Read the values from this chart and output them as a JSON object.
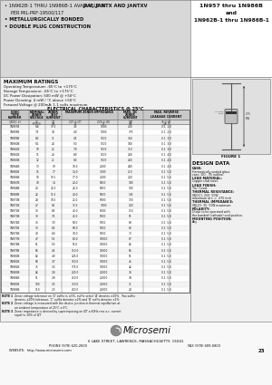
{
  "title_left_line1a": "• 1N962B-1 THRU 1N986B-1 AVAILABLE IN ",
  "title_left_line1b": "JAN, JANTX AND JANTXV",
  "title_left_line2": "  PER MIL-PRF-19500/117",
  "title_left_line3": "• METALLURGICALLY BONDED",
  "title_left_line4": "• DOUBLE PLUG CONSTRUCTION",
  "title_right1": "1N957 thru 1N986B",
  "title_right2": "and",
  "title_right3": "1N962B-1 thru 1N986B-1",
  "max_ratings_title": "MAXIMUM RATINGS",
  "max_ratings": [
    "Operating Temperature: -65°C to +175°C",
    "Storage Temperature: -65°C to +175°C",
    "DC Power Dissipation: 500 mW @ +50°C",
    "Power Derating: 4 mW / °C above +50°C",
    "Forward Voltage @ 200mA: 1.1 volts maximum"
  ],
  "elec_char_title": "ELECTRICAL CHARACTERISTICS @ 25°C",
  "table_data": [
    [
      "1N957B",
      "6.8",
      "37.5",
      "3.5",
      "1000",
      "0.25",
      "400",
      "0.1",
      "1.0"
    ],
    [
      "1N958B",
      "7.5",
      "34",
      "4.0",
      "1000",
      "0.25",
      "375",
      "0.1",
      "2.0"
    ],
    [
      "1N959B",
      "8.2",
      "31",
      "4.5",
      "1500",
      "0.25",
      "360",
      "0.1",
      "3.0"
    ],
    [
      "1N960B",
      "9.1",
      "28",
      "5.0",
      "1500",
      "0.25",
      "340",
      "0.1",
      "3.0"
    ],
    [
      "1N961B",
      "10",
      "25",
      "7.0",
      "1500",
      "0.25",
      "310",
      "0.1",
      "3.0"
    ],
    [
      "1N962B",
      "11",
      "23",
      "8.0",
      "1500",
      "0.25",
      "280",
      "0.1",
      "4.0"
    ],
    [
      "1N963B",
      "12",
      "21",
      "9.0",
      "1500",
      "0.25",
      "260",
      "0.1",
      "4.0"
    ],
    [
      "1N964B",
      "13",
      "19",
      "10.0",
      "2000",
      "0.25",
      "240",
      "0.1",
      "4.0"
    ],
    [
      "1N965B",
      "15",
      "17",
      "14.0",
      "3000",
      "0.25",
      "210",
      "0.1",
      "5.0"
    ],
    [
      "1N966B",
      "16",
      "15.5",
      "17.0",
      "4000",
      "0.5",
      "200",
      "0.1",
      "5.0"
    ],
    [
      "1N967B",
      "18",
      "14",
      "20.0",
      "5000",
      "0.5",
      "180",
      "0.1",
      "5.0"
    ],
    [
      "1N968B",
      "20",
      "12.5",
      "22.0",
      "5000",
      "0.5",
      "160",
      "0.1",
      "5.0"
    ],
    [
      "1N969B",
      "22",
      "11.5",
      "23.0",
      "5000",
      "0.5",
      "145",
      "0.1",
      "5.0"
    ],
    [
      "1N970B",
      "24",
      "10.5",
      "25.0",
      "6000",
      "0.5",
      "130",
      "0.1",
      "5.0"
    ],
    [
      "1N971B",
      "27",
      "9.5",
      "35.0",
      "7000",
      "0.5",
      "120",
      "0.1",
      "5.0"
    ],
    [
      "1N972B",
      "30",
      "8.5",
      "40.0",
      "8000",
      "0.5",
      "110",
      "0.1",
      "5.0"
    ],
    [
      "1N973B",
      "33",
      "7.5",
      "45.0",
      "9000",
      "0.5",
      "95",
      "0.1",
      "5.0"
    ],
    [
      "1N974B",
      "36",
      "7.0",
      "50.0",
      "9000",
      "0.5",
      "88",
      "0.1",
      "5.0"
    ],
    [
      "1N975B",
      "39",
      "6.5",
      "60.0",
      "9000",
      "0.5",
      "80",
      "0.1",
      "5.0"
    ],
    [
      "1N976B",
      "43",
      "6.0",
      "70.0",
      "9000",
      "0.5",
      "73",
      "0.1",
      "5.0"
    ],
    [
      "1N977B",
      "47",
      "5.5",
      "80.0",
      "10000",
      "0.5",
      "67",
      "0.1",
      "5.0"
    ],
    [
      "1N978B",
      "51",
      "5.0",
      "95.0",
      "10000",
      "0.5",
      "62",
      "0.1",
      "5.0"
    ],
    [
      "1N979B",
      "56",
      "4.5",
      "110.0",
      "10000",
      "0.5",
      "56",
      "0.1",
      "5.0"
    ],
    [
      "1N980B",
      "62",
      "4.0",
      "125.0",
      "10000",
      "1.0",
      "51",
      "0.1",
      "5.0"
    ],
    [
      "1N981B",
      "68",
      "3.7",
      "150.0",
      "10000",
      "1.0",
      "46",
      "0.1",
      "5.0"
    ],
    [
      "1N982B",
      "75",
      "3.3",
      "175.0",
      "10000",
      "1.0",
      "42",
      "0.1",
      "5.0"
    ],
    [
      "1N983B",
      "82",
      "3.0",
      "200.0",
      "20000",
      "1.0",
      "38",
      "0.1",
      "5.0"
    ],
    [
      "1N984B",
      "91",
      "2.8",
      "250.0",
      "20000",
      "1.0",
      "34",
      "0.1",
      "5.0"
    ],
    [
      "1N985B",
      "100",
      "2.5",
      "350.0",
      "20000",
      "1.0",
      "31",
      "0.1",
      "5.0"
    ],
    [
      "1N986B",
      "110",
      "2.3",
      "450.0",
      "20000",
      "1.0",
      "28",
      "0.1",
      "5.0"
    ]
  ],
  "notes": [
    [
      "NOTE 1",
      "Zener voltage tolerance on 'D' suffix is ±5%, suffix select 'A' denotes ±10%.  Two suffix"
    ],
    [
      "",
      "denotes ±20% tolerance, 'C' suffix denotes ±2% and 'B' suffix denotes ±1%."
    ],
    [
      "NOTE 2",
      "Zener voltage is measured with the device junction in thermal equilibrium at"
    ],
    [
      "",
      "an ambient temperature of 25°C ±3°C."
    ],
    [
      "NOTE 3",
      "Zener impedance is derived by superimposing on IZT a 60Hz rms a.c. current"
    ],
    [
      "",
      "equal to 10% of IZT"
    ]
  ],
  "design_data_title": "DESIGN DATA",
  "design_data": [
    [
      "CASE:",
      "Hermetically sealed glass\ncase, DO - 35 outline."
    ],
    [
      "LEAD MATERIAL:",
      "Copper clad steel."
    ],
    [
      "LEAD FINISH:",
      "Tin / Lead."
    ],
    [
      "THERMAL RESISTANCE:",
      "(θJC(C): 250 °C/W\nmaximum at L = .375 Inch"
    ],
    [
      "THERMAL IMPEDANCE:",
      "(θJLD): 35 °C/W maximum"
    ],
    [
      "POLARITY:",
      "Diode to be operated with\nthe banded (cathode) end positive."
    ],
    [
      "MOUNTING POSITION:",
      "Any"
    ]
  ],
  "footer_address": "6 LAKE STREET, LAWRENCE, MASSACHUSETTS  01841",
  "footer_phone": "PHONE (978) 620-2600",
  "footer_fax": "FAX (978) 689-0803",
  "footer_website": "WEBSITE:  http://www.microsemi.com",
  "footer_page": "23"
}
